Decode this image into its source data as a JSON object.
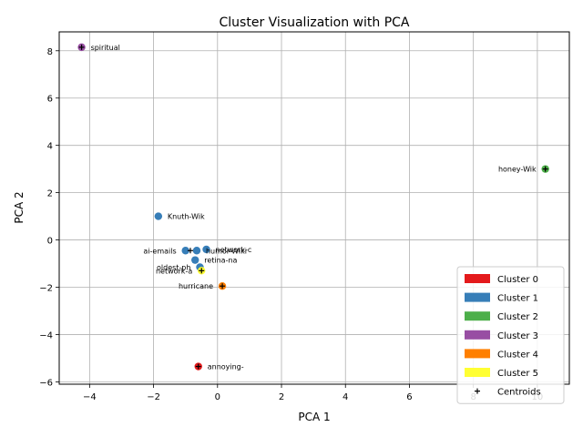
{
  "chart_data": {
    "type": "scatter",
    "title": "Cluster Visualization with PCA",
    "xlabel": "PCA 1",
    "ylabel": "PCA 2",
    "xlim": [
      -4.95,
      11.0
    ],
    "ylim": [
      -6.1,
      8.8
    ],
    "xticks": [
      -4,
      -2,
      0,
      2,
      4,
      6,
      8,
      10
    ],
    "yticks": [
      -6,
      -4,
      -2,
      0,
      2,
      4,
      6,
      8
    ],
    "xtick_labels": [
      "−4",
      "−2",
      "0",
      "2",
      "4",
      "6",
      "8",
      "10"
    ],
    "ytick_labels": [
      "−6",
      "−4",
      "−2",
      "0",
      "2",
      "4",
      "6",
      "8"
    ],
    "grid": true,
    "legend_position": "bottom-right",
    "clusters": [
      {
        "name": "Cluster 0",
        "color": "#e41a1c"
      },
      {
        "name": "Cluster 1",
        "color": "#377eb8"
      },
      {
        "name": "Cluster 2",
        "color": "#4daf4a"
      },
      {
        "name": "Cluster 3",
        "color": "#984ea3"
      },
      {
        "name": "Cluster 4",
        "color": "#ff7f00"
      },
      {
        "name": "Cluster 5",
        "color": "#ffff33"
      }
    ],
    "centroids_label": "Centroids",
    "points": [
      {
        "label": "spiritual",
        "x": -4.25,
        "y": 8.15,
        "cluster": 3,
        "anchor": "start"
      },
      {
        "label": "honey-Wik",
        "x": 10.25,
        "y": 3.0,
        "cluster": 2,
        "anchor": "end"
      },
      {
        "label": "Knuth-Wik",
        "x": -1.85,
        "y": 1.0,
        "cluster": 1,
        "anchor": "start"
      },
      {
        "label": "ai-emails",
        "x": -1.0,
        "y": -0.45,
        "cluster": 1,
        "anchor": "end"
      },
      {
        "label": "humor-Wiki",
        "x": -0.65,
        "y": -0.45,
        "cluster": 1,
        "anchor": "start"
      },
      {
        "label": "network-c",
        "x": -0.35,
        "y": -0.4,
        "cluster": 1,
        "anchor": "start"
      },
      {
        "label": "retina-na",
        "x": -0.7,
        "y": -0.85,
        "cluster": 1,
        "anchor": "start"
      },
      {
        "label": "oldest-ph",
        "x": -0.55,
        "y": -1.15,
        "cluster": 1,
        "anchor": "end"
      },
      {
        "label": "network-a",
        "x": -0.5,
        "y": -1.3,
        "cluster": 5,
        "anchor": "end"
      },
      {
        "label": "hurricane",
        "x": 0.15,
        "y": -1.95,
        "cluster": 4,
        "anchor": "end"
      },
      {
        "label": "annoying-",
        "x": -0.6,
        "y": -5.35,
        "cluster": 0,
        "anchor": "start"
      }
    ],
    "centroids": [
      {
        "x": -4.25,
        "y": 8.15
      },
      {
        "x": 10.25,
        "y": 3.0
      },
      {
        "x": -0.85,
        "y": -0.45
      },
      {
        "x": -0.5,
        "y": -1.3
      },
      {
        "x": 0.15,
        "y": -1.95
      },
      {
        "x": -0.6,
        "y": -5.35
      }
    ]
  }
}
